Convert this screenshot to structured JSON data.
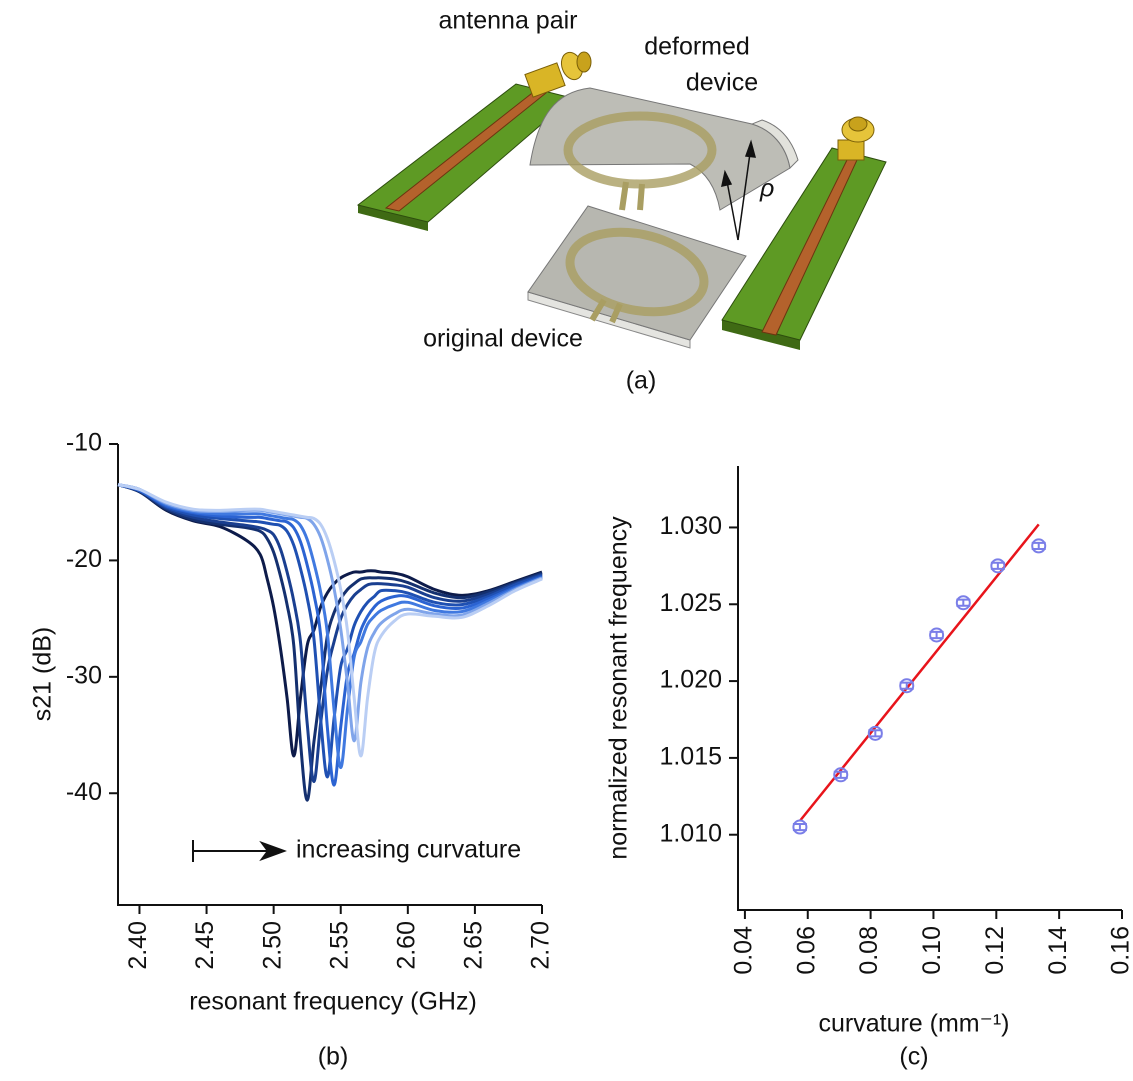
{
  "illustration": {
    "labels": {
      "antenna_pair": "antenna pair",
      "deformed_device": [
        "deformed",
        "device"
      ],
      "original_device": "original device",
      "rho": "ρ"
    },
    "panel_label": "(a)"
  },
  "chart_data": [
    {
      "type": "line",
      "panel_label": "(b)",
      "xlabel": "resonant frequency (GHz)",
      "ylabel": "s21 (dB)",
      "annotation": "increasing curvature",
      "x": [
        2.384,
        2.4,
        2.42,
        2.44,
        2.46,
        2.48,
        2.49,
        2.495,
        2.5,
        2.505,
        2.51,
        2.515,
        2.52,
        2.525,
        2.53,
        2.535,
        2.54,
        2.545,
        2.55,
        2.555,
        2.56,
        2.565,
        2.57,
        2.575,
        2.58,
        2.59,
        2.6,
        2.62,
        2.64,
        2.66,
        2.68,
        2.7
      ],
      "series": [
        {
          "color": "#0d1b4a",
          "values": [
            -13.5,
            -14.1,
            -15.7,
            -16.6,
            -17.1,
            -18.3,
            -19.5,
            -21.5,
            -24,
            -27.5,
            -31.8,
            -36.8,
            -31.8,
            -27.3,
            -26,
            -24,
            -22.8,
            -22,
            -21.5,
            -21.2,
            -21,
            -21,
            -20.9,
            -20.9,
            -21,
            -21.1,
            -21.4,
            -22.5,
            -23,
            -22.6,
            -21.8,
            -21
          ]
        },
        {
          "color": "#14306f",
          "values": [
            -13.5,
            -14.1,
            -15.6,
            -16.5,
            -16.9,
            -17.2,
            -17.5,
            -18.1,
            -19.3,
            -21.3,
            -23.8,
            -27.3,
            -35.6,
            -40.6,
            -35.6,
            -31.1,
            -26.5,
            -24.5,
            -23.3,
            -22.5,
            -22,
            -21.6,
            -21.5,
            -21.5,
            -21.5,
            -21.6,
            -21.9,
            -22.8,
            -23.2,
            -22.7,
            -21.9,
            -21.1
          ]
        },
        {
          "color": "#1a3f90",
          "values": [
            -13.5,
            -14,
            -15.5,
            -16.3,
            -16.7,
            -17,
            -17.2,
            -17.4,
            -17.8,
            -19,
            -21,
            -23.5,
            -27,
            -34,
            -39,
            -34,
            -29.5,
            -27,
            -25,
            -23.8,
            -23,
            -22.5,
            -22.1,
            -22,
            -22,
            -22.1,
            -22.3,
            -23.2,
            -23.5,
            -22.9,
            -22,
            -21.2
          ]
        },
        {
          "color": "#1f50b2",
          "values": [
            -13.5,
            -14,
            -15.4,
            -16.1,
            -16.4,
            -16.6,
            -16.7,
            -16.8,
            -16.9,
            -17,
            -17.5,
            -18.7,
            -20.7,
            -23.2,
            -26.7,
            -33.6,
            -38.6,
            -33.6,
            -29.1,
            -27.6,
            -25.6,
            -24.4,
            -23.6,
            -23.1,
            -22.6,
            -22.6,
            -22.8,
            -23.6,
            -23.8,
            -23.1,
            -22.1,
            -21.3
          ]
        },
        {
          "color": "#2b63d2",
          "values": [
            -13.5,
            -14,
            -15.3,
            -15.9,
            -16.2,
            -16.3,
            -16.3,
            -16.4,
            -16.5,
            -16.6,
            -16.7,
            -17.2,
            -18.4,
            -20.4,
            -22.9,
            -26.4,
            -34.3,
            -39.3,
            -34.3,
            -29.8,
            -28,
            -26,
            -24.8,
            -24,
            -23.5,
            -23.1,
            -23.1,
            -23.9,
            -24.1,
            -23.3,
            -22.3,
            -21.4
          ]
        },
        {
          "color": "#4079e0",
          "values": [
            -13.5,
            -13.9,
            -15.2,
            -15.8,
            -16,
            -16,
            -16,
            -16.1,
            -16.2,
            -16.3,
            -16.4,
            -16.5,
            -17,
            -18.2,
            -20.2,
            -22.7,
            -26.2,
            -32.8,
            -37.8,
            -32.8,
            -28.3,
            -27,
            -25.5,
            -24.8,
            -24.3,
            -23.8,
            -23.6,
            -24.3,
            -24.4,
            -23.5,
            -22.4,
            -21.5
          ]
        },
        {
          "color": "#7fa4ea",
          "values": [
            -13.5,
            -13.9,
            -15.1,
            -15.7,
            -15.8,
            -15.7,
            -15.7,
            -15.8,
            -15.9,
            -16,
            -16.1,
            -16.2,
            -16.3,
            -16.4,
            -16.9,
            -18,
            -19.9,
            -22.4,
            -25.9,
            -30.5,
            -35.5,
            -30.5,
            -27.5,
            -26.2,
            -25.4,
            -24.6,
            -24.2,
            -24.6,
            -24.7,
            -23.7,
            -22.5,
            -21.5
          ]
        },
        {
          "color": "#bacef4",
          "values": [
            -13.5,
            -13.9,
            -15,
            -15.6,
            -15.7,
            -15.6,
            -15.6,
            -15.7,
            -15.8,
            -15.9,
            -16,
            -16.1,
            -16.2,
            -16.3,
            -16.4,
            -16.9,
            -18.1,
            -20,
            -22.5,
            -26,
            -31.8,
            -36.8,
            -31.8,
            -28,
            -26.5,
            -25.2,
            -24.6,
            -24.8,
            -24.9,
            -23.9,
            -22.6,
            -21.6
          ]
        }
      ],
      "xlim": [
        2.384,
        2.7
      ],
      "xticks": [
        {
          "value": 2.4,
          "label": "2.40"
        },
        {
          "value": 2.45,
          "label": "2.45"
        },
        {
          "value": 2.5,
          "label": "2.50"
        },
        {
          "value": 2.55,
          "label": "2.55"
        },
        {
          "value": 2.6,
          "label": "2.60"
        },
        {
          "value": 2.65,
          "label": "2.65"
        },
        {
          "value": 2.7,
          "label": "2.70"
        }
      ],
      "ylim": [
        -49.6,
        -10
      ],
      "yticks": [
        -10,
        -20,
        -30,
        -40
      ],
      "grid": false
    },
    {
      "type": "scatter",
      "panel_label": "(c)",
      "xlabel": "curvature (mm⁻¹)",
      "ylabel": "normalized resonant frequency",
      "x": [
        0.0575,
        0.0705,
        0.0815,
        0.0915,
        0.101,
        0.1095,
        0.1205,
        0.1335
      ],
      "values": [
        1.0105,
        1.0139,
        1.0166,
        1.0197,
        1.023,
        1.0251,
        1.0275,
        1.0288
      ],
      "errors": [
        0.0002,
        0.0002,
        0.0002,
        0.0002,
        0.0002,
        0.0002,
        0.0002,
        0.0002
      ],
      "color": "#7a7ee8",
      "fit": {
        "x": [
          0.0575,
          0.1335
        ],
        "values": [
          1.0109,
          1.0302
        ],
        "color": "#e8141b"
      },
      "xlim": [
        0.0378,
        0.16
      ],
      "xticks": [
        {
          "value": 0.04,
          "label": "0.04"
        },
        {
          "value": 0.06,
          "label": "0.06"
        },
        {
          "value": 0.08,
          "label": "0.08"
        },
        {
          "value": 0.1,
          "label": "0.10"
        },
        {
          "value": 0.12,
          "label": "0.12"
        },
        {
          "value": 0.14,
          "label": "0.14"
        },
        {
          "value": 0.16,
          "label": "0.16"
        }
      ],
      "ylim": [
        1.0051,
        1.034
      ],
      "yticks": [
        {
          "value": 1.01,
          "label": "1.010"
        },
        {
          "value": 1.015,
          "label": "1.015"
        },
        {
          "value": 1.02,
          "label": "1.020"
        },
        {
          "value": 1.025,
          "label": "1.025"
        },
        {
          "value": 1.03,
          "label": "1.030"
        }
      ],
      "grid": false
    }
  ]
}
